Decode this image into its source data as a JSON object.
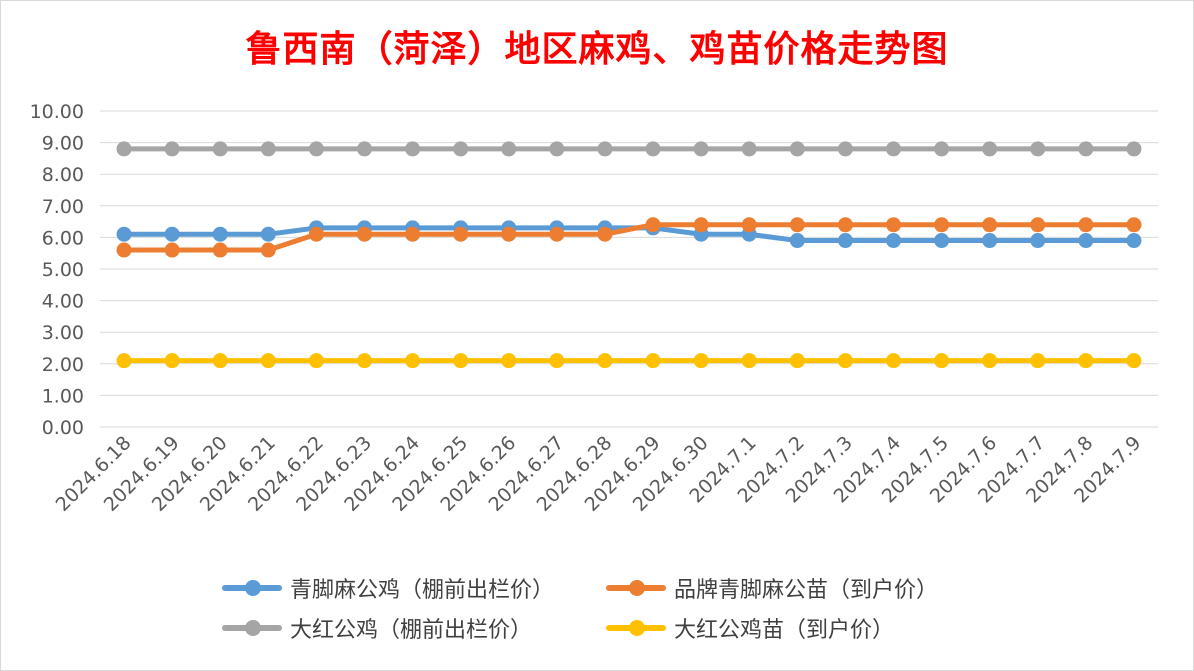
{
  "chart_data": {
    "type": "line",
    "title": "鲁西南（菏泽）地区麻鸡、鸡苗价格走势图",
    "categories": [
      "2024.6.18",
      "2024.6.19",
      "2024.6.20",
      "2024.6.21",
      "2024.6.22",
      "2024.6.23",
      "2024.6.24",
      "2024.6.25",
      "2024.6.26",
      "2024.6.27",
      "2024.6.28",
      "2024.6.29",
      "2024.6.30",
      "2024.7.1",
      "2024.7.2",
      "2024.7.3",
      "2024.7.4",
      "2024.7.5",
      "2024.7.6",
      "2024.7.7",
      "2024.7.8",
      "2024.7.9"
    ],
    "yticks": [
      "0.00",
      "1.00",
      "2.00",
      "3.00",
      "4.00",
      "5.00",
      "6.00",
      "7.00",
      "8.00",
      "9.00",
      "10.00"
    ],
    "ylim": [
      0,
      10
    ],
    "grid": true,
    "legend_position": "bottom",
    "series": [
      {
        "name": "青脚麻公鸡（棚前出栏价）",
        "color": "#5b9bd5",
        "values": [
          6.1,
          6.1,
          6.1,
          6.1,
          6.3,
          6.3,
          6.3,
          6.3,
          6.3,
          6.3,
          6.3,
          6.3,
          6.1,
          6.1,
          5.9,
          5.9,
          5.9,
          5.9,
          5.9,
          5.9,
          5.9,
          5.9
        ]
      },
      {
        "name": "品牌青脚麻公苗（到户价）",
        "color": "#ed7d31",
        "values": [
          5.6,
          5.6,
          5.6,
          5.6,
          6.1,
          6.1,
          6.1,
          6.1,
          6.1,
          6.1,
          6.1,
          6.4,
          6.4,
          6.4,
          6.4,
          6.4,
          6.4,
          6.4,
          6.4,
          6.4,
          6.4,
          6.4
        ]
      },
      {
        "name": "大红公鸡（棚前出栏价）",
        "color": "#a5a5a5",
        "values": [
          8.8,
          8.8,
          8.8,
          8.8,
          8.8,
          8.8,
          8.8,
          8.8,
          8.8,
          8.8,
          8.8,
          8.8,
          8.8,
          8.8,
          8.8,
          8.8,
          8.8,
          8.8,
          8.8,
          8.8,
          8.8,
          8.8
        ]
      },
      {
        "name": "大红公鸡苗（到户价）",
        "color": "#ffc000",
        "values": [
          2.1,
          2.1,
          2.1,
          2.1,
          2.1,
          2.1,
          2.1,
          2.1,
          2.1,
          2.1,
          2.1,
          2.1,
          2.1,
          2.1,
          2.1,
          2.1,
          2.1,
          2.1,
          2.1,
          2.1,
          2.1,
          2.1
        ]
      }
    ]
  }
}
